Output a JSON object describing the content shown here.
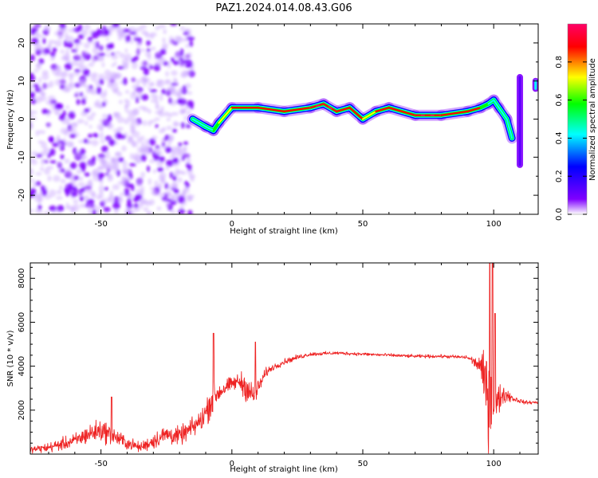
{
  "title": "PAZ1.2024.014.08.43.G06",
  "chart_data": [
    {
      "type": "heatmap",
      "xlabel": "Height of straight line (km)",
      "ylabel": "Frequency (Hz)",
      "xlim": [
        -77,
        117
      ],
      "ylim": [
        -25,
        25
      ],
      "x_ticks": [
        -50,
        0,
        50,
        100
      ],
      "y_ticks": [
        -20,
        -10,
        0,
        10,
        20
      ],
      "colorbar": {
        "label": "Normalized spectral amplitude",
        "range": [
          0,
          1
        ],
        "ticks": [
          0.0,
          0.2,
          0.4,
          0.6,
          0.8
        ],
        "colormap": "gist_rainbow_r",
        "colors": [
          "#ffffff",
          "#7f00ff",
          "#0000ff",
          "#00ffff",
          "#00ff00",
          "#ffff00",
          "#ff0000",
          "#ff0066"
        ]
      },
      "noise_region": {
        "x_range": [
          -77,
          -15
        ],
        "y_range": [
          -25,
          25
        ],
        "amplitude": [
          0.05,
          0.3
        ]
      },
      "ridge": {
        "x": [
          -15,
          -10,
          -7,
          -5,
          0,
          10,
          20,
          30,
          35,
          40,
          45,
          50,
          55,
          60,
          70,
          80,
          90,
          95,
          98,
          100,
          102,
          105,
          107
        ],
        "y": [
          0,
          -2,
          -3,
          -1,
          3,
          3,
          2,
          3,
          4,
          2,
          3,
          0,
          2,
          3,
          1,
          1,
          2,
          3,
          4,
          5,
          3,
          0,
          -5
        ],
        "amplitude": [
          0.25,
          0.35,
          0.45,
          0.55,
          0.75,
          0.85,
          0.8,
          0.9,
          0.9,
          0.88,
          0.85,
          0.6,
          0.82,
          0.85,
          0.9,
          0.88,
          0.85,
          0.6,
          0.4,
          0.4,
          0.35,
          0.3,
          0.28
        ]
      },
      "features": [
        {
          "x": 110,
          "y_range": [
            -12,
            11
          ],
          "amplitude": 0.25
        },
        {
          "x": 116,
          "y_range": [
            8,
            10
          ],
          "amplitude": 0.5
        }
      ]
    },
    {
      "type": "line",
      "xlabel": "Height of straight line (km)",
      "ylabel": "SNR (10 * v/v)",
      "xlim": [
        -77,
        117
      ],
      "ylim": [
        0,
        8700
      ],
      "x_ticks": [
        -50,
        0,
        50,
        100
      ],
      "y_ticks": [
        2000,
        4000,
        6000,
        8000
      ],
      "color": "#ee2222",
      "x": [
        -77,
        -70,
        -60,
        -55,
        -50,
        -45,
        -40,
        -35,
        -30,
        -25,
        -20,
        -15,
        -12,
        -10,
        -8,
        -6,
        -4,
        0,
        3,
        6,
        8,
        10,
        13,
        15,
        20,
        25,
        30,
        40,
        50,
        60,
        70,
        80,
        90,
        95,
        97,
        98,
        99,
        100,
        101,
        103,
        105,
        108,
        112,
        117
      ],
      "mean": [
        200,
        300,
        600,
        900,
        1100,
        800,
        500,
        300,
        600,
        900,
        800,
        1200,
        1500,
        1900,
        2400,
        2700,
        2900,
        3200,
        3300,
        3000,
        2600,
        3000,
        3700,
        3900,
        4200,
        4400,
        4550,
        4600,
        4550,
        4500,
        4450,
        4450,
        4400,
        4000,
        3000,
        3000,
        2800,
        2300,
        2200,
        2700,
        2700,
        2500,
        2350,
        2350
      ],
      "noise": [
        200,
        300,
        450,
        600,
        700,
        550,
        400,
        300,
        500,
        600,
        550,
        600,
        700,
        800,
        1000,
        700,
        600,
        400,
        600,
        900,
        800,
        500,
        300,
        200,
        180,
        150,
        120,
        100,
        100,
        100,
        100,
        100,
        120,
        500,
        2500,
        3500,
        3000,
        1500,
        1200,
        700,
        400,
        200,
        100,
        100
      ],
      "spikes": [
        {
          "x": -46,
          "value": 2600
        },
        {
          "x": -7,
          "value": 5500
        },
        {
          "x": 9,
          "value": 5100
        },
        {
          "x": 98.5,
          "value": 8700
        },
        {
          "x": 99.5,
          "value": 8700
        },
        {
          "x": 100.5,
          "value": 6400
        }
      ]
    }
  ]
}
